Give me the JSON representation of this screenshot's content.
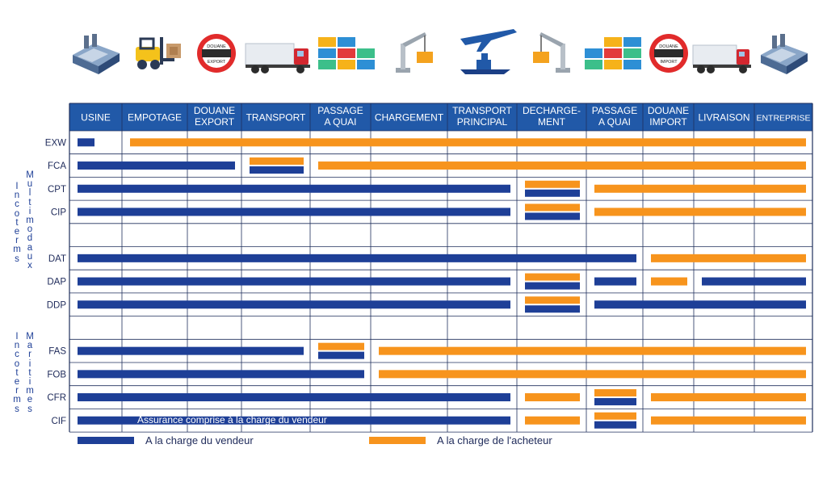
{
  "colors": {
    "seller": "#1e3f97",
    "buyer": "#f7941d",
    "header_bg": "#2159a8",
    "grid": "#1f2f5c",
    "row_label": "#1e2a5a"
  },
  "icons": [
    "factory-icon",
    "forklift-icon",
    "export-customs-sign-icon",
    "truck-icon",
    "containers-icon",
    "crane-icon",
    "plane-ship-icon",
    "crane-icon",
    "containers-icon",
    "import-customs-sign-icon",
    "truck-icon",
    "factory-icon"
  ],
  "sign_texts": {
    "export": "DOUANE\nEXPORT",
    "import": "DOUANE\nIMPORT"
  },
  "columns": [
    {
      "key": "usine",
      "label": "USINE"
    },
    {
      "key": "empotage",
      "label": "EMPOTAGE"
    },
    {
      "key": "douane_export",
      "label": "DOUANE\nEXPORT"
    },
    {
      "key": "transport",
      "label": "TRANSPORT"
    },
    {
      "key": "passage_quai_1",
      "label": "PASSAGE\nA QUAI"
    },
    {
      "key": "chargement",
      "label": "CHARGEMENT"
    },
    {
      "key": "transport_principal",
      "label": "TRANSPORT\nPRINCIPAL"
    },
    {
      "key": "dechargement",
      "label": "DECHARGE-\nMENT"
    },
    {
      "key": "passage_quai_2",
      "label": "PASSAGE\nA QUAI"
    },
    {
      "key": "douane_import",
      "label": "DOUANE\nIMPORT"
    },
    {
      "key": "livraison",
      "label": "LIVRAISON"
    },
    {
      "key": "entreprise",
      "label": "ENTREPRISE"
    }
  ],
  "rows": [
    {
      "code": "EXW",
      "bars": [
        {
          "who": "seller",
          "from": 0,
          "to": 0.6
        },
        {
          "who": "buyer",
          "from": 1,
          "to": 12
        }
      ]
    },
    {
      "code": "FCA",
      "bars": [
        {
          "who": "seller",
          "from": 0,
          "to": 3
        },
        {
          "who": "buyer",
          "from": 3,
          "to": 4,
          "lane": "top"
        },
        {
          "who": "seller",
          "from": 3,
          "to": 4,
          "lane": "bottom"
        },
        {
          "who": "buyer",
          "from": 4,
          "to": 12
        }
      ]
    },
    {
      "code": "CPT",
      "bars": [
        {
          "who": "seller",
          "from": 0,
          "to": 7
        },
        {
          "who": "buyer",
          "from": 7,
          "to": 8,
          "lane": "top"
        },
        {
          "who": "seller",
          "from": 7,
          "to": 8,
          "lane": "bottom"
        },
        {
          "who": "buyer",
          "from": 8,
          "to": 12
        }
      ]
    },
    {
      "code": "CIP",
      "bars": [
        {
          "who": "seller",
          "from": 0,
          "to": 7
        },
        {
          "who": "buyer",
          "from": 7,
          "to": 8,
          "lane": "top"
        },
        {
          "who": "seller",
          "from": 7,
          "to": 8,
          "lane": "bottom"
        },
        {
          "who": "buyer",
          "from": 8,
          "to": 12
        }
      ]
    },
    {
      "code": "",
      "bars": []
    },
    {
      "code": "DAT",
      "bars": [
        {
          "who": "seller",
          "from": 0,
          "to": 9
        },
        {
          "who": "buyer",
          "from": 9,
          "to": 12
        }
      ]
    },
    {
      "code": "DAP",
      "bars": [
        {
          "who": "seller",
          "from": 0,
          "to": 7
        },
        {
          "who": "buyer",
          "from": 7,
          "to": 8,
          "lane": "top"
        },
        {
          "who": "seller",
          "from": 7,
          "to": 8,
          "lane": "bottom"
        },
        {
          "who": "seller",
          "from": 8,
          "to": 9
        },
        {
          "who": "buyer",
          "from": 9,
          "to": 10
        },
        {
          "who": "seller",
          "from": 10,
          "to": 12
        }
      ]
    },
    {
      "code": "DDP",
      "bars": [
        {
          "who": "seller",
          "from": 0,
          "to": 7
        },
        {
          "who": "buyer",
          "from": 7,
          "to": 8,
          "lane": "top"
        },
        {
          "who": "seller",
          "from": 7,
          "to": 8,
          "lane": "bottom"
        },
        {
          "who": "seller",
          "from": 8,
          "to": 12
        }
      ]
    },
    {
      "code": "",
      "bars": []
    },
    {
      "code": "FAS",
      "bars": [
        {
          "who": "seller",
          "from": 0,
          "to": 4
        },
        {
          "who": "buyer",
          "from": 4,
          "to": 5,
          "lane": "top"
        },
        {
          "who": "seller",
          "from": 4,
          "to": 5,
          "lane": "bottom"
        },
        {
          "who": "buyer",
          "from": 5,
          "to": 12
        }
      ]
    },
    {
      "code": "FOB",
      "bars": [
        {
          "who": "seller",
          "from": 0,
          "to": 5
        },
        {
          "who": "buyer",
          "from": 5,
          "to": 12
        }
      ]
    },
    {
      "code": "CFR",
      "bars": [
        {
          "who": "seller",
          "from": 0,
          "to": 7
        },
        {
          "who": "buyer",
          "from": 7,
          "to": 8
        },
        {
          "who": "buyer",
          "from": 8,
          "to": 9,
          "lane": "top"
        },
        {
          "who": "seller",
          "from": 8,
          "to": 9,
          "lane": "bottom"
        },
        {
          "who": "buyer",
          "from": 9,
          "to": 12
        }
      ]
    },
    {
      "code": "CIF",
      "bars": [
        {
          "who": "seller",
          "from": 0,
          "to": 7
        },
        {
          "who": "buyer",
          "from": 7,
          "to": 8
        },
        {
          "who": "buyer",
          "from": 8,
          "to": 9,
          "lane": "top"
        },
        {
          "who": "seller",
          "from": 8,
          "to": 9,
          "lane": "bottom"
        },
        {
          "who": "buyer",
          "from": 9,
          "to": 12
        }
      ],
      "annotation": "Assurance comprise à la charge du vendeur"
    }
  ],
  "groups": [
    {
      "name": "multimodal",
      "line1": "Incoterms",
      "line2": "Multimodaux"
    },
    {
      "name": "maritime",
      "line1": "Incoterms",
      "line2": "Maritimes"
    }
  ],
  "legend": {
    "seller": "A la charge du vendeur",
    "buyer": "A la charge de l'acheteur"
  }
}
